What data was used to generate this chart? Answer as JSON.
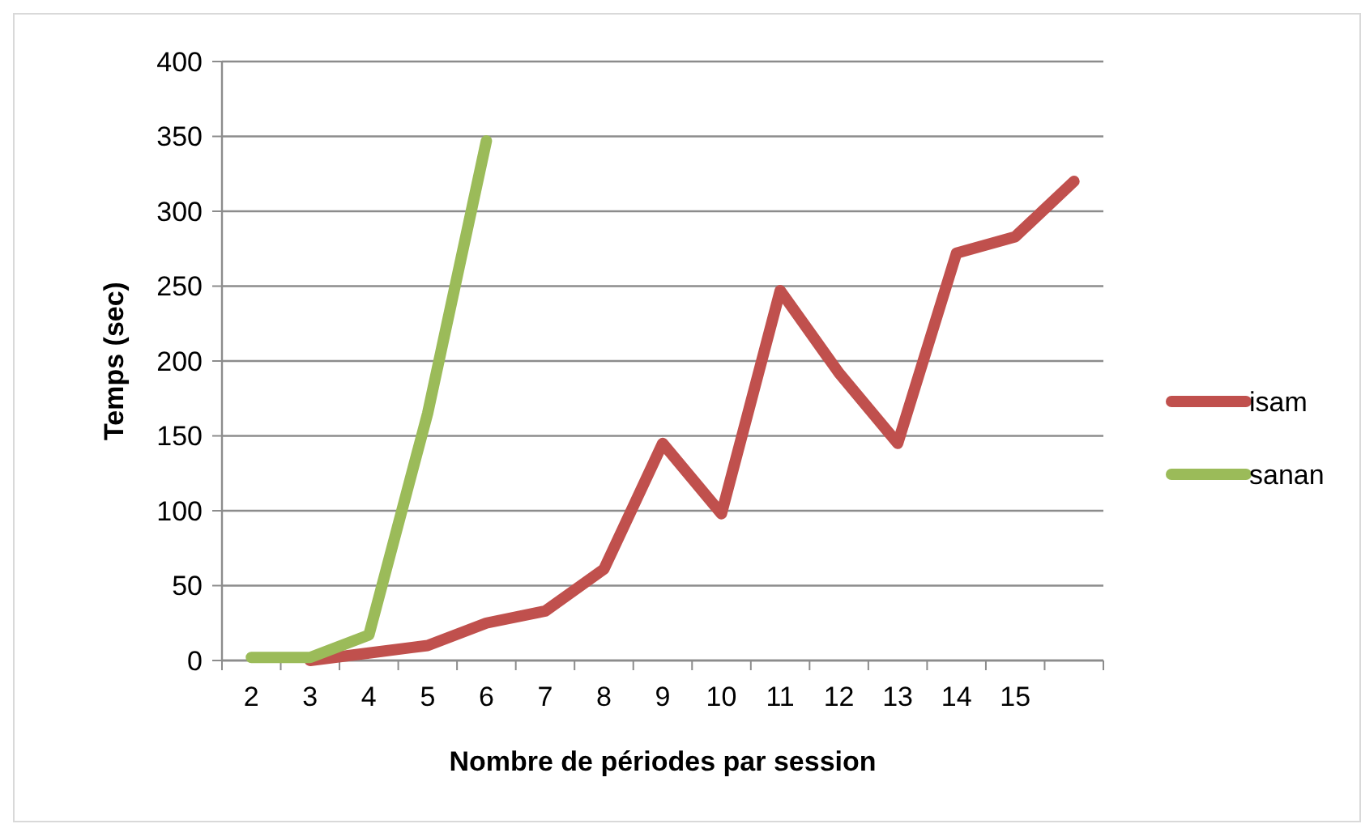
{
  "chart_data": {
    "type": "line",
    "xlabel": "Nombre de périodes par session",
    "ylabel": "Temps (sec)",
    "categories": [
      "2",
      "3",
      "4",
      "5",
      "6",
      "7",
      "8",
      "9",
      "10",
      "11",
      "12",
      "13",
      "14",
      "15",
      null
    ],
    "series": [
      {
        "name": "isam",
        "color": "#c0504d",
        "values": [
          null,
          0,
          5,
          10,
          25,
          33,
          61,
          145,
          98,
          247,
          192,
          145,
          272,
          283,
          320
        ]
      },
      {
        "name": "sanan",
        "color": "#9bbb59",
        "values": [
          2,
          2,
          17,
          165,
          347,
          null,
          null,
          null,
          null,
          null,
          null,
          null,
          null,
          null,
          null
        ]
      }
    ],
    "ylim": [
      0,
      400
    ],
    "yticks": [
      0,
      50,
      100,
      150,
      200,
      250,
      300,
      350,
      400
    ],
    "grid": "y",
    "legend": "right",
    "line_style": "solid"
  }
}
